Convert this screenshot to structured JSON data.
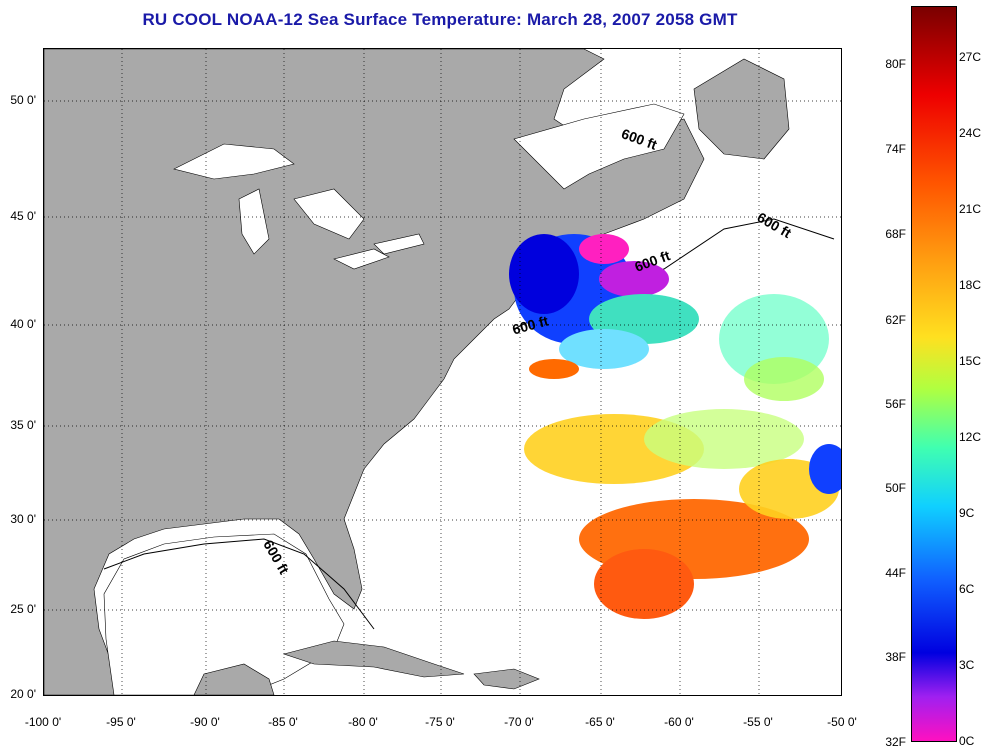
{
  "title": "RU COOL  NOAA-12  Sea Surface Temperature:  March 28, 2007 2058 GMT",
  "lat_labels": [
    "50 0'",
    "45 0'",
    "40 0'",
    "35 0'",
    "30 0'",
    "25 0'",
    "20 0'"
  ],
  "lon_labels": [
    "-100 0'",
    "-95 0'",
    "-90 0'",
    "-85 0'",
    "-80 0'",
    "-75 0'",
    "-70 0'",
    "-65 0'",
    "-60 0'",
    "-55 0'",
    "-50 0'"
  ],
  "contour_label": "600 ft",
  "colorbar": {
    "fahrenheit": [
      "80F",
      "74F",
      "68F",
      "62F",
      "56F",
      "50F",
      "44F",
      "38F",
      "32F"
    ],
    "celsius": [
      "27C",
      "24C",
      "21C",
      "18C",
      "15C",
      "12C",
      "9C",
      "6C",
      "3C",
      "0C"
    ]
  },
  "colors": {
    "land": "#a9a9a9",
    "title": "#1a1aa8",
    "lakes": "#ffffff"
  }
}
